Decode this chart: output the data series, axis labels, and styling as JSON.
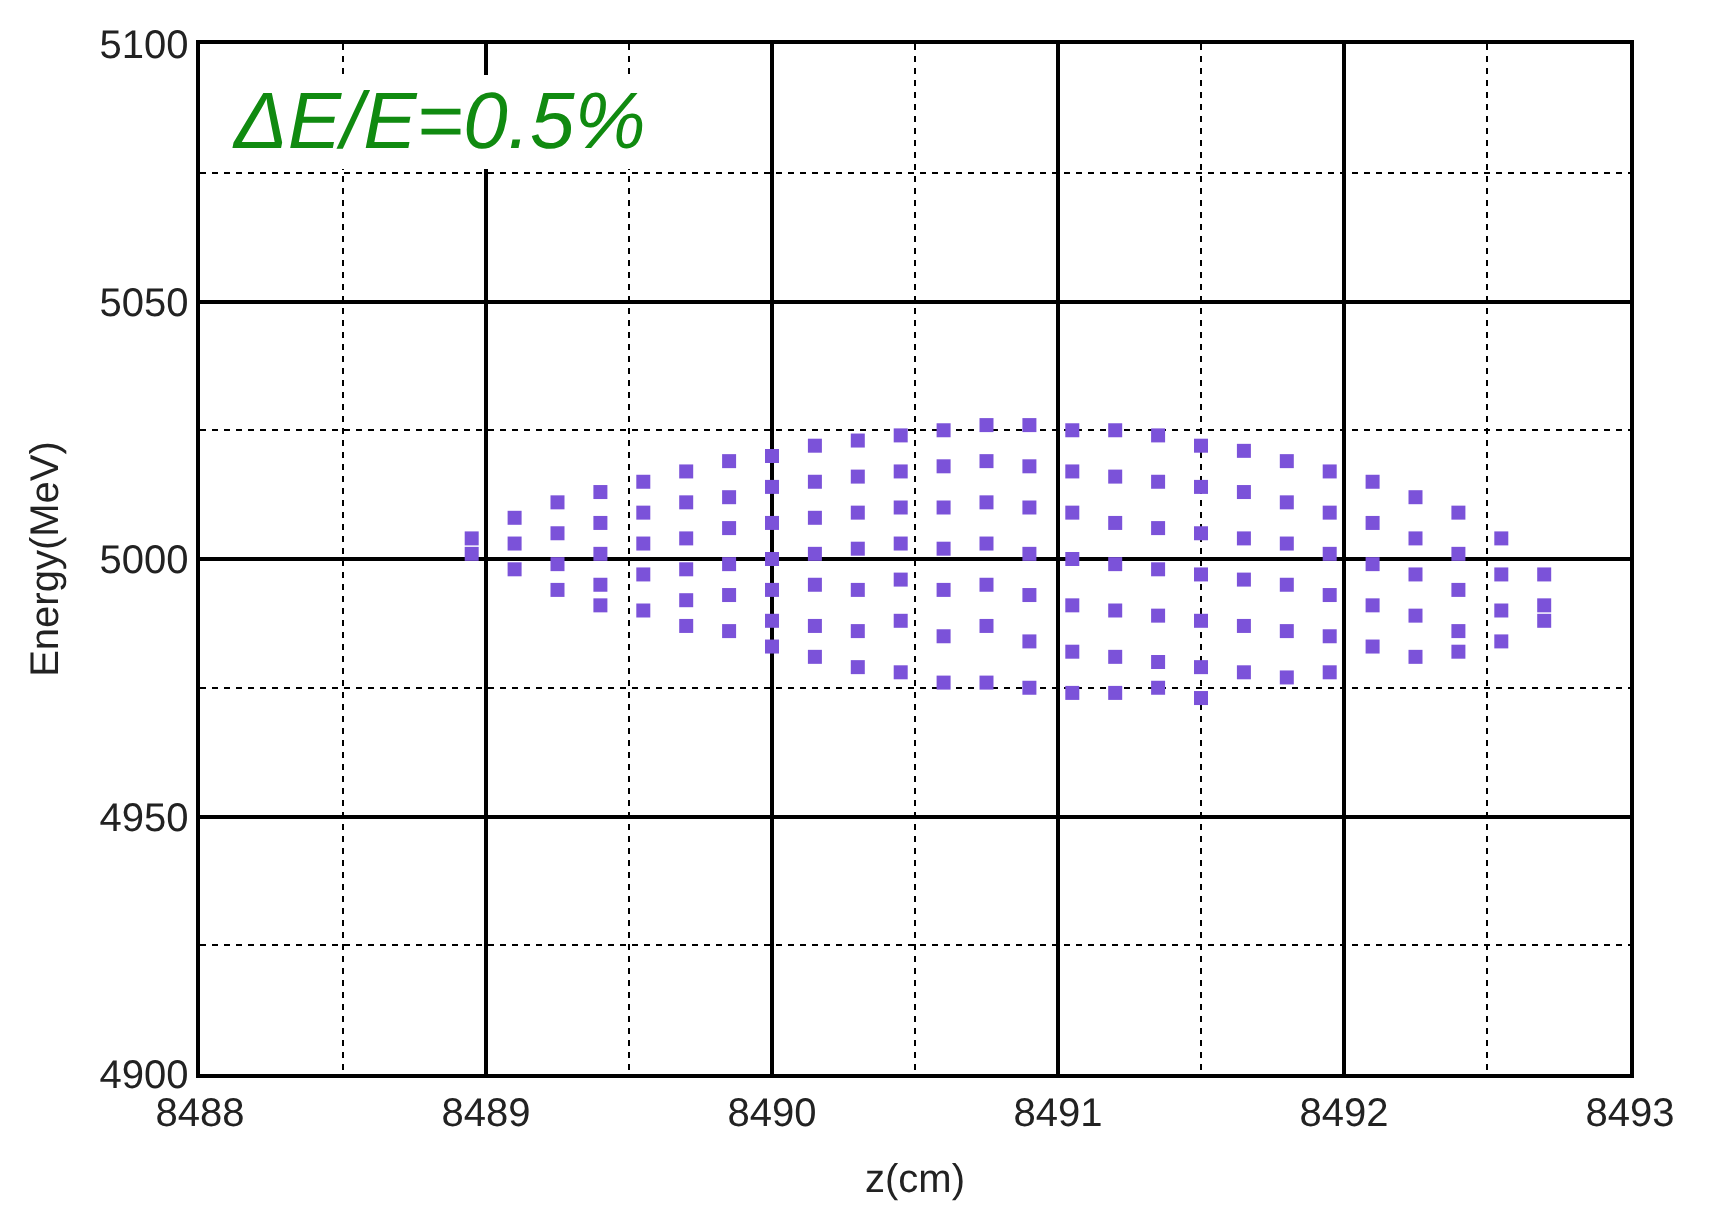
{
  "chart_data": {
    "type": "scatter",
    "xlabel": "z(cm)",
    "ylabel": "Energy(MeV)",
    "annotations": [
      "ΔE/E=0.5%"
    ],
    "xlim": [
      8488,
      8493
    ],
    "xticks": [
      8488,
      8489,
      8490,
      8491,
      8492,
      8493
    ],
    "ylim": [
      4900,
      5100
    ],
    "yticks": [
      4900,
      4950,
      5000,
      5050,
      5100
    ],
    "grid": true,
    "marker": "square",
    "series": [
      {
        "color": "#7b52d9",
        "x": [
          8488.95,
          8488.95,
          8489.1,
          8489.1,
          8489.1,
          8489.25,
          8489.25,
          8489.25,
          8489.25,
          8489.4,
          8489.4,
          8489.4,
          8489.4,
          8489.4,
          8489.55,
          8489.55,
          8489.55,
          8489.55,
          8489.55,
          8489.7,
          8489.7,
          8489.7,
          8489.7,
          8489.7,
          8489.7,
          8489.85,
          8489.85,
          8489.85,
          8489.85,
          8489.85,
          8489.85,
          8490.0,
          8490.0,
          8490.0,
          8490.0,
          8490.0,
          8490.0,
          8490.0,
          8490.15,
          8490.15,
          8490.15,
          8490.15,
          8490.15,
          8490.15,
          8490.15,
          8490.3,
          8490.3,
          8490.3,
          8490.3,
          8490.3,
          8490.3,
          8490.3,
          8490.45,
          8490.45,
          8490.45,
          8490.45,
          8490.45,
          8490.45,
          8490.45,
          8490.6,
          8490.6,
          8490.6,
          8490.6,
          8490.6,
          8490.6,
          8490.6,
          8490.75,
          8490.75,
          8490.75,
          8490.75,
          8490.75,
          8490.75,
          8490.75,
          8490.9,
          8490.9,
          8490.9,
          8490.9,
          8490.9,
          8490.9,
          8490.9,
          8491.05,
          8491.05,
          8491.05,
          8491.05,
          8491.05,
          8491.05,
          8491.05,
          8491.2,
          8491.2,
          8491.2,
          8491.2,
          8491.2,
          8491.2,
          8491.2,
          8491.35,
          8491.35,
          8491.35,
          8491.35,
          8491.35,
          8491.35,
          8491.35,
          8491.5,
          8491.5,
          8491.5,
          8491.5,
          8491.5,
          8491.5,
          8491.5,
          8491.65,
          8491.65,
          8491.65,
          8491.65,
          8491.65,
          8491.65,
          8491.8,
          8491.8,
          8491.8,
          8491.8,
          8491.8,
          8491.8,
          8491.95,
          8491.95,
          8491.95,
          8491.95,
          8491.95,
          8491.95,
          8492.1,
          8492.1,
          8492.1,
          8492.1,
          8492.1,
          8492.25,
          8492.25,
          8492.25,
          8492.25,
          8492.25,
          8492.4,
          8492.4,
          8492.4,
          8492.4,
          8492.4,
          8492.55,
          8492.55,
          8492.55,
          8492.55,
          8492.7,
          8492.7,
          8492.7
        ],
        "values": [
          5004,
          5001,
          5008,
          5003,
          4998,
          5011,
          5005,
          4999,
          4994,
          5013,
          5007,
          5001,
          4995,
          4991,
          5015,
          5009,
          5003,
          4997,
          4990,
          5017,
          5011,
          5004,
          4998,
          4992,
          4987,
          5019,
          5012,
          5006,
          4999,
          4993,
          4986,
          5020,
          5014,
          5007,
          5000,
          4994,
          4988,
          4983,
          5022,
          5015,
          5008,
          5001,
          4995,
          4987,
          4981,
          5023,
          5016,
          5009,
          5002,
          4994,
          4986,
          4979,
          5024,
          5017,
          5010,
          5003,
          4996,
          4988,
          4978,
          5025,
          5018,
          5010,
          5002,
          4994,
          4985,
          4976,
          5026,
          5019,
          5011,
          5003,
          4995,
          4987,
          4976,
          5026,
          5018,
          5010,
          5001,
          4993,
          4984,
          4975,
          5025,
          5017,
          5009,
          5000,
          4991,
          4982,
          4974,
          5025,
          5016,
          5007,
          4999,
          4990,
          4981,
          4974,
          5024,
          5015,
          5006,
          4998,
          4989,
          4980,
          4975,
          5022,
          5014,
          5005,
          4997,
          4988,
          4979,
          4973,
          5021,
          5013,
          5004,
          4996,
          4987,
          4978,
          5019,
          5011,
          5003,
          4995,
          4986,
          4977,
          5017,
          5009,
          5001,
          4993,
          4985,
          4978,
          5015,
          5007,
          4999,
          4991,
          4983,
          5012,
          5004,
          4997,
          4989,
          4981,
          5009,
          5001,
          4994,
          4986,
          4982,
          5004,
          4997,
          4990,
          4984,
          4997,
          4991,
          4988
        ]
      }
    ]
  }
}
